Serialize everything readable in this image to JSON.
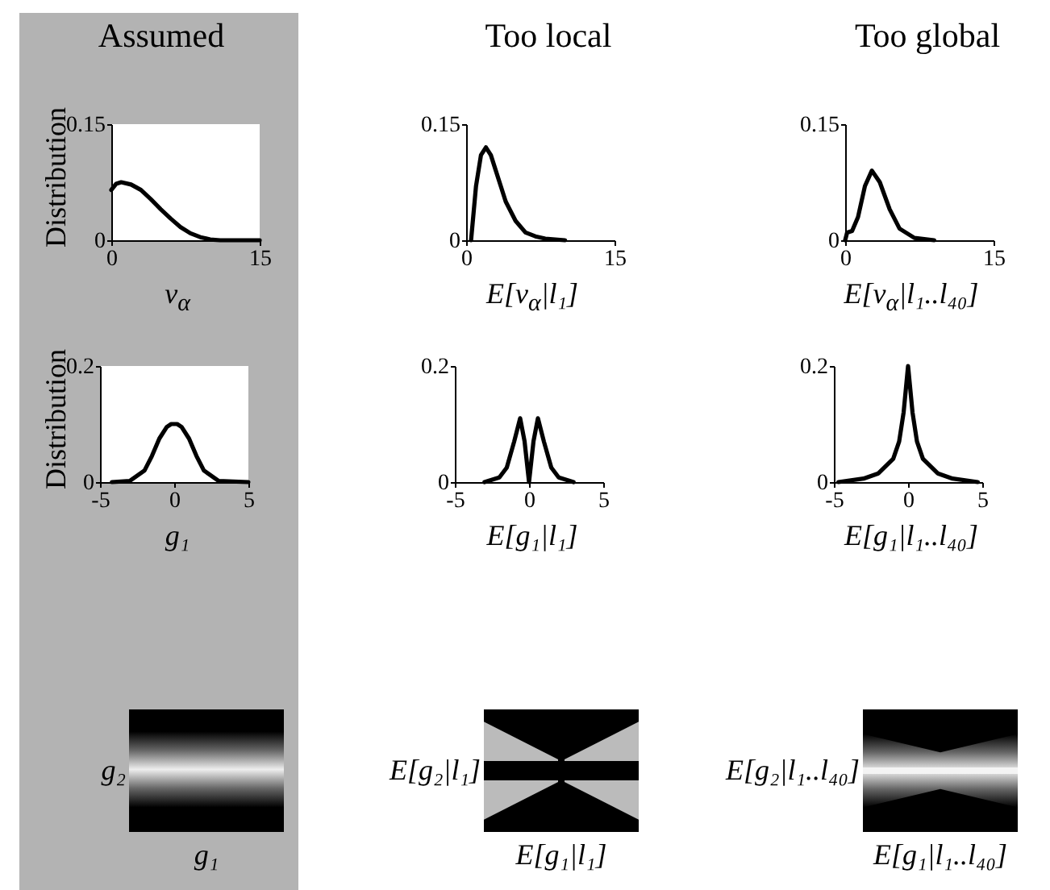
{
  "chart_data": [
    {
      "type": "line",
      "title": "Assumed",
      "ylabel": "Distribution",
      "xlabel": "v$_{α}$",
      "x": [
        0,
        0.5,
        1,
        2,
        3,
        4,
        5,
        6,
        7,
        8,
        9,
        10,
        11,
        12,
        15
      ],
      "xlim": [
        0,
        15
      ],
      "ylim": [
        0,
        0.15
      ],
      "xticks": [
        0,
        15
      ],
      "yticks": [
        0,
        0.15
      ],
      "series": [
        {
          "color": "#000000",
          "values": [
            0.065,
            0.073,
            0.075,
            0.072,
            0.065,
            0.053,
            0.04,
            0.028,
            0.017,
            0.009,
            0.004,
            0.001,
            0,
            0,
            0
          ]
        }
      ]
    },
    {
      "type": "line",
      "title": "Too local",
      "xlabel": "E[v$_{α}$|l₁]",
      "x": [
        0.5,
        1,
        1.5,
        2,
        2.5,
        3,
        3.5,
        4,
        5,
        6,
        7,
        8,
        10
      ],
      "xlim": [
        0,
        15
      ],
      "ylim": [
        0,
        0.15
      ],
      "xticks": [
        0,
        15
      ],
      "yticks": [
        0,
        0.15
      ],
      "series": [
        {
          "color": "#000000",
          "values": [
            0,
            0.07,
            0.11,
            0.12,
            0.11,
            0.09,
            0.07,
            0.05,
            0.025,
            0.01,
            0.005,
            0.002,
            0
          ]
        }
      ]
    },
    {
      "type": "line",
      "title": "Too global",
      "xlabel": "E[v$_{α}$|l₁..l₄₀]",
      "x": [
        0,
        0.2,
        0.7,
        1.3,
        2,
        2.7,
        3.5,
        4.5,
        5.5,
        7,
        9
      ],
      "xlim": [
        0,
        15
      ],
      "ylim": [
        0,
        0.15
      ],
      "xticks": [
        0,
        15
      ],
      "yticks": [
        0,
        0.15
      ],
      "series": [
        {
          "color": "#000000",
          "values": [
            0,
            0.01,
            0.012,
            0.03,
            0.07,
            0.09,
            0.075,
            0.04,
            0.015,
            0.003,
            0
          ]
        }
      ]
    },
    {
      "type": "line",
      "ylabel": "Distribution",
      "xlabel": "g₁",
      "x": [
        -4.2,
        -3,
        -2,
        -1.5,
        -1,
        -0.5,
        -0.2,
        0,
        0.2,
        0.5,
        1,
        1.5,
        2,
        3,
        5
      ],
      "xlim": [
        -5,
        5
      ],
      "ylim": [
        0,
        0.2
      ],
      "xticks": [
        -5,
        0,
        5
      ],
      "yticks": [
        0,
        0.2
      ],
      "series": [
        {
          "color": "#000000",
          "values": [
            0,
            0.002,
            0.02,
            0.045,
            0.075,
            0.095,
            0.1,
            0.1,
            0.1,
            0.095,
            0.075,
            0.045,
            0.02,
            0.002,
            0
          ]
        }
      ]
    },
    {
      "type": "line",
      "xlabel": "E[g₁|l₁]",
      "x": [
        -3,
        -2,
        -1.5,
        -1,
        -0.6,
        -0.3,
        0,
        0.3,
        0.6,
        1,
        1.5,
        2,
        3
      ],
      "xlim": [
        -5,
        5
      ],
      "ylim": [
        0,
        0.2
      ],
      "xticks": [
        -5,
        0,
        5
      ],
      "yticks": [
        0,
        0.2
      ],
      "series": [
        {
          "color": "#000000",
          "values": [
            0,
            0.008,
            0.025,
            0.07,
            0.11,
            0.07,
            0,
            0.07,
            0.11,
            0.07,
            0.025,
            0.008,
            0
          ]
        }
      ]
    },
    {
      "type": "line",
      "xlabel": "E[g₁|l₁..l₄₀]",
      "x": [
        -4.7,
        -3,
        -2,
        -1,
        -0.6,
        -0.3,
        0,
        0.3,
        0.6,
        1,
        2,
        3,
        4.7
      ],
      "xlim": [
        -5,
        5
      ],
      "ylim": [
        0,
        0.2
      ],
      "xticks": [
        -5,
        0,
        5
      ],
      "yticks": [
        0,
        0.2
      ],
      "series": [
        {
          "color": "#000000",
          "values": [
            0,
            0.006,
            0.015,
            0.04,
            0.07,
            0.12,
            0.2,
            0.12,
            0.07,
            0.04,
            0.015,
            0.006,
            0
          ]
        }
      ]
    },
    {
      "type": "other",
      "xlabel": "g₁",
      "ylabel": "g₂"
    },
    {
      "type": "other",
      "xlabel": "E[g₁|l₁]",
      "ylabel": "E[g₂|l₁]"
    },
    {
      "type": "other",
      "xlabel": "E[g₁|l₁..l₄₀]",
      "ylabel": "E[g₂|l₁..l₄₀]"
    }
  ]
}
